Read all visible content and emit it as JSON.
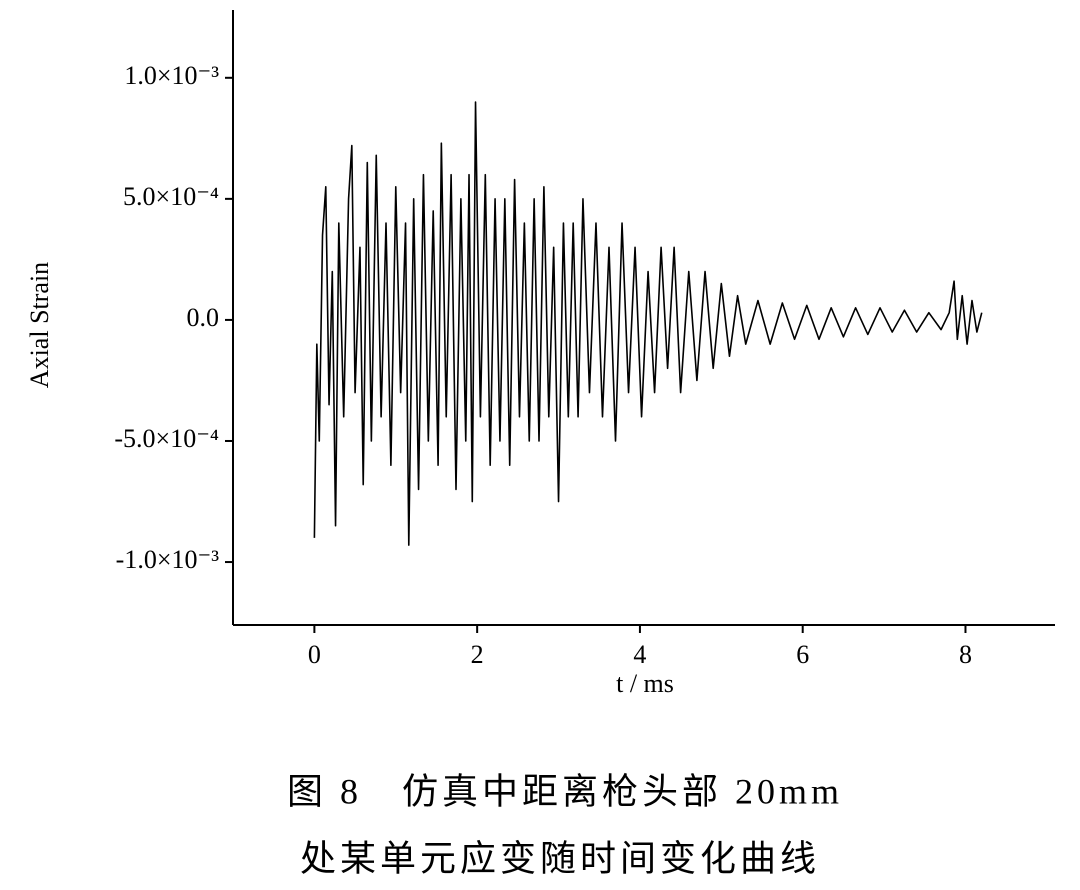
{
  "chart_data": {
    "type": "line",
    "x_label": "t / ms",
    "y_label": "Axial Strain",
    "caption": [
      "图 8　仿真中距离枪头部 20mm",
      "处某单元应变随时间变化曲线"
    ],
    "color": "#000000",
    "xlim": [
      -1,
      9.1
    ],
    "ylim": [
      -0.00126,
      0.00128
    ],
    "xticks": [
      0,
      2,
      4,
      6,
      8
    ],
    "yticks": [
      {
        "value": -0.001,
        "label": "-1.0×10⁻³"
      },
      {
        "value": -0.0005,
        "label": "-5.0×10⁻⁴"
      },
      {
        "value": 0,
        "label": "0.0"
      },
      {
        "value": 0.0005,
        "label": "5.0×10⁻⁴"
      },
      {
        "value": 0.001,
        "label": "1.0×10⁻³"
      }
    ],
    "x": [
      0,
      0.03,
      0.06,
      0.1,
      0.14,
      0.18,
      0.22,
      0.26,
      0.3,
      0.36,
      0.42,
      0.46,
      0.5,
      0.56,
      0.6,
      0.65,
      0.7,
      0.76,
      0.82,
      0.88,
      0.94,
      1.0,
      1.06,
      1.12,
      1.16,
      1.22,
      1.28,
      1.34,
      1.4,
      1.46,
      1.52,
      1.56,
      1.62,
      1.68,
      1.74,
      1.8,
      1.86,
      1.9,
      1.94,
      1.98,
      2.04,
      2.1,
      2.16,
      2.22,
      2.28,
      2.34,
      2.4,
      2.46,
      2.52,
      2.58,
      2.64,
      2.7,
      2.76,
      2.82,
      2.88,
      2.94,
      3.0,
      3.06,
      3.12,
      3.18,
      3.24,
      3.3,
      3.38,
      3.46,
      3.54,
      3.62,
      3.7,
      3.78,
      3.86,
      3.94,
      4.02,
      4.1,
      4.18,
      4.26,
      4.34,
      4.42,
      4.5,
      4.6,
      4.7,
      4.8,
      4.9,
      5.0,
      5.1,
      5.2,
      5.3,
      5.45,
      5.6,
      5.75,
      5.9,
      6.05,
      6.2,
      6.35,
      6.5,
      6.65,
      6.8,
      6.95,
      7.1,
      7.25,
      7.4,
      7.55,
      7.7,
      7.8,
      7.86,
      7.9,
      7.96,
      8.02,
      8.08,
      8.14,
      8.2
    ],
    "values": [
      -0.0009,
      -0.0001,
      -0.0005,
      0.00035,
      0.00055,
      -0.00035,
      0.0002,
      -0.00085,
      0.0004,
      -0.0004,
      0.0005,
      0.00072,
      -0.0003,
      0.0003,
      -0.00068,
      0.00065,
      -0.0005,
      0.00068,
      -0.0004,
      0.0004,
      -0.0006,
      0.00055,
      -0.0003,
      0.0004,
      -0.00093,
      0.0005,
      -0.0007,
      0.0006,
      -0.0005,
      0.00045,
      -0.0006,
      0.00073,
      -0.0004,
      0.0006,
      -0.0007,
      0.0005,
      -0.0005,
      0.0006,
      -0.00075,
      0.0009,
      -0.0004,
      0.0006,
      -0.0006,
      0.0005,
      -0.0005,
      0.0005,
      -0.0006,
      0.00058,
      -0.0004,
      0.0004,
      -0.0005,
      0.0005,
      -0.0005,
      0.00055,
      -0.0004,
      0.0003,
      -0.00075,
      0.0004,
      -0.0004,
      0.0004,
      -0.0004,
      0.0005,
      -0.0003,
      0.0004,
      -0.0004,
      0.0003,
      -0.0005,
      0.0004,
      -0.0003,
      0.0003,
      -0.0004,
      0.0002,
      -0.0003,
      0.0003,
      -0.0002,
      0.0003,
      -0.0003,
      0.0002,
      -0.00025,
      0.0002,
      -0.0002,
      0.00015,
      -0.00015,
      0.0001,
      -0.0001,
      8e-05,
      -0.0001,
      7e-05,
      -8e-05,
      6e-05,
      -8e-05,
      5e-05,
      -7e-05,
      5e-05,
      -6e-05,
      5e-05,
      -5e-05,
      4e-05,
      -5e-05,
      3e-05,
      -4e-05,
      3e-05,
      0.00016,
      -8e-05,
      0.0001,
      -0.0001,
      8e-05,
      -5e-05,
      3e-05
    ]
  }
}
